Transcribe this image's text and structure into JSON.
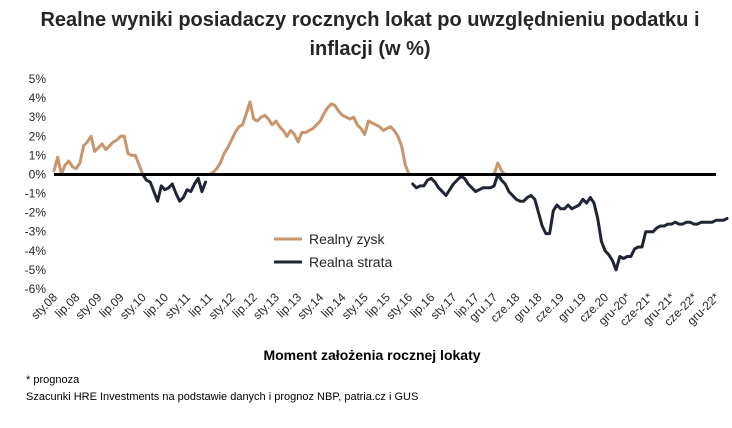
{
  "chart_data": {
    "type": "line",
    "title": "Realne wyniki posiadaczy rocznych lokat po uwzględnieniu podatku i inflacji (w %)",
    "xlabel": "Moment założenia rocznej lokaty",
    "ylabel": "",
    "ylim": [
      -6,
      5
    ],
    "y_ticks": [
      "5%",
      "4%",
      "3%",
      "2%",
      "1%",
      "0%",
      "-1%",
      "-2%",
      "-3%",
      "-4%",
      "-5%",
      "-6%"
    ],
    "x_tick_labels": [
      "sty.08",
      "lip.08",
      "sty.09",
      "lip.09",
      "sty.10",
      "lip.10",
      "sty.11",
      "lip.11",
      "sty.12",
      "lip.12",
      "sty.13",
      "lip.13",
      "sty.14",
      "lip.14",
      "sty.15",
      "lip.15",
      "sty.16",
      "lip.16",
      "sty.17",
      "lip.17",
      "gru.17",
      "cze.18",
      "gru.18",
      "cze.19",
      "gru.19",
      "cze.20",
      "gru-20*",
      "cze-21*",
      "gru-21*",
      "cze-22*",
      "gru-22*"
    ],
    "x_tick_months": [
      0,
      6,
      12,
      18,
      24,
      30,
      36,
      42,
      48,
      54,
      60,
      66,
      72,
      78,
      84,
      90,
      96,
      102,
      108,
      114,
      119,
      125,
      131,
      137,
      143,
      149,
      155,
      161,
      167,
      173,
      179
    ],
    "grid": false,
    "legend_position": "center",
    "series": [
      {
        "name": "Realny zysk",
        "color": "#c8956c",
        "values": [
          0.2,
          0.9,
          0.0,
          0.5,
          0.7,
          0.4,
          0.3,
          0.6,
          1.5,
          1.7,
          2.0,
          1.2,
          1.4,
          1.6,
          1.3,
          1.5,
          1.7,
          1.8,
          2.0,
          2.0,
          1.1,
          1.0,
          1.0,
          0.5,
          0.0,
          null,
          null,
          null,
          null,
          null,
          null,
          null,
          null,
          null,
          null,
          null,
          null,
          null,
          null,
          null,
          null,
          null,
          0.0,
          0.1,
          0.3,
          0.6,
          1.1,
          1.4,
          1.8,
          2.2,
          2.5,
          2.6,
          3.2,
          3.8,
          2.9,
          2.8,
          3.0,
          3.1,
          2.9,
          2.6,
          2.8,
          2.5,
          2.3,
          2.0,
          2.3,
          2.1,
          1.7,
          2.2,
          2.2,
          2.3,
          2.4,
          2.6,
          2.8,
          3.2,
          3.5,
          3.7,
          3.6,
          3.3,
          3.1,
          3.0,
          2.9,
          3.0,
          2.6,
          2.4,
          2.1,
          2.8,
          2.7,
          2.6,
          2.5,
          2.3,
          2.4,
          2.5,
          2.3,
          2.0,
          1.5,
          0.5,
          0.0,
          null,
          null,
          null,
          null,
          null,
          null,
          null,
          null,
          null,
          null,
          null,
          null,
          null,
          null,
          null,
          null,
          null,
          null,
          null,
          null,
          null,
          null,
          0.0,
          0.6,
          0.2,
          0.0,
          null,
          null,
          null,
          null,
          null,
          null,
          null,
          null,
          null,
          null,
          null,
          null,
          null,
          null,
          null,
          null,
          null,
          null,
          null,
          null,
          null,
          null,
          null,
          null,
          null,
          null,
          null,
          null,
          null,
          null,
          null,
          null,
          null,
          null,
          null,
          null,
          null,
          null,
          null,
          null,
          null,
          null,
          null,
          null,
          null,
          null,
          null,
          null,
          null,
          null,
          null,
          null,
          null,
          null,
          null,
          null,
          null,
          null,
          null,
          null,
          null,
          null,
          null,
          null,
          null
        ]
      },
      {
        "name": "Realna strata",
        "color": "#1f2533",
        "values": [
          null,
          null,
          null,
          null,
          null,
          null,
          null,
          null,
          null,
          null,
          null,
          null,
          null,
          null,
          null,
          null,
          null,
          null,
          null,
          null,
          null,
          null,
          null,
          null,
          0.0,
          -0.3,
          -0.4,
          -0.9,
          -1.4,
          -0.6,
          -0.8,
          -0.7,
          -0.5,
          -1.0,
          -1.4,
          -1.2,
          -0.8,
          -0.9,
          -0.5,
          -0.2,
          -0.9,
          -0.4,
          null,
          null,
          null,
          null,
          null,
          null,
          null,
          null,
          null,
          null,
          null,
          null,
          null,
          null,
          null,
          null,
          null,
          null,
          null,
          null,
          null,
          null,
          null,
          null,
          null,
          null,
          null,
          null,
          null,
          null,
          null,
          null,
          null,
          null,
          null,
          null,
          null,
          null,
          null,
          null,
          null,
          null,
          null,
          null,
          null,
          null,
          null,
          null,
          null,
          null,
          null,
          null,
          null,
          null,
          null,
          -0.5,
          -0.7,
          -0.6,
          -0.6,
          -0.3,
          -0.2,
          -0.4,
          -0.7,
          -0.9,
          -1.1,
          -0.8,
          -0.5,
          -0.3,
          -0.1,
          -0.2,
          -0.5,
          -0.7,
          -0.9,
          -0.8,
          -0.7,
          -0.7,
          -0.7,
          -0.6,
          0.0,
          -0.3,
          -0.5,
          -0.9,
          -1.1,
          -1.3,
          -1.4,
          -1.4,
          -1.2,
          -1.1,
          -1.3,
          -2.0,
          -2.7,
          -3.1,
          -3.1,
          -1.9,
          -1.6,
          -1.8,
          -1.8,
          -1.6,
          -1.8,
          -1.7,
          -1.6,
          -1.3,
          -1.5,
          -1.2,
          -1.5,
          -2.3,
          -3.5,
          -4.0,
          -4.2,
          -4.5,
          -5.0,
          -4.3,
          -4.4,
          -4.3,
          -4.3,
          -3.9,
          -3.8,
          -3.8,
          -3.0,
          -3.0,
          -3.0,
          -2.8,
          -2.7,
          -2.7,
          -2.6,
          -2.6,
          -2.5,
          -2.6,
          -2.6,
          -2.5,
          -2.5,
          -2.6,
          -2.6,
          -2.5,
          -2.5,
          -2.5,
          -2.5,
          -2.4,
          -2.4,
          -2.4,
          -2.3
        ]
      }
    ]
  },
  "footnote": "* prognoza",
  "source": "Szacunki HRE Investments na podstawie danych i prognoz NBP,  patria.cz  i GUS"
}
